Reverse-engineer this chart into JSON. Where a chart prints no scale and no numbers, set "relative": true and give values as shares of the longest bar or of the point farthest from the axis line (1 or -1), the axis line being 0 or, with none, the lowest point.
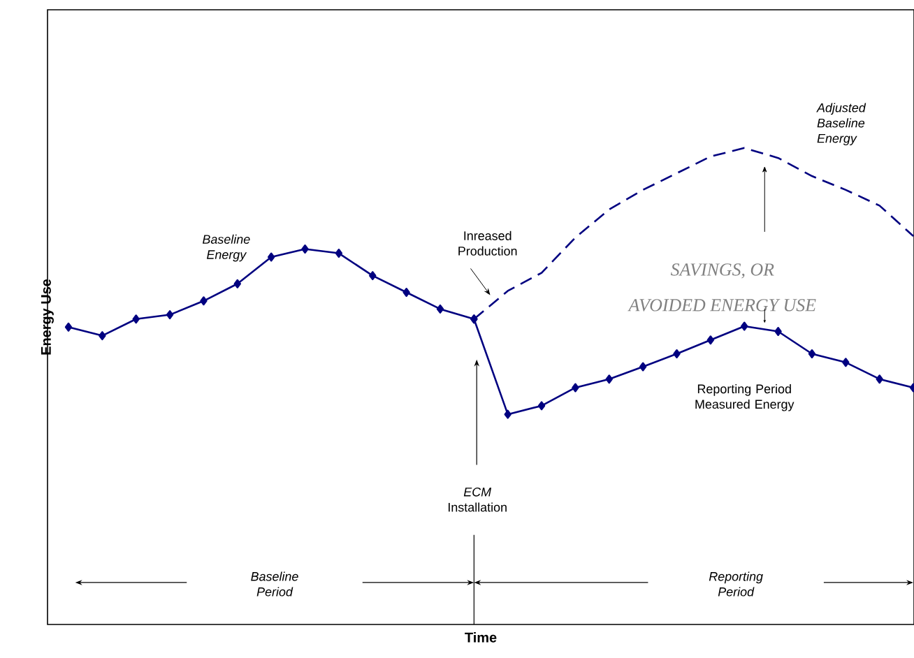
{
  "chart_data": {
    "type": "line",
    "relative": true,
    "xlabel": "Time",
    "ylabel": "Energy Use",
    "categories": [
      null,
      null,
      null,
      null,
      null,
      null,
      null,
      null,
      null,
      null,
      null,
      null,
      null,
      null,
      null,
      null,
      null,
      null,
      null,
      null,
      null,
      null,
      null,
      null,
      null,
      null
    ],
    "series": [
      {
        "name": "Baseline Energy",
        "color": "#000080",
        "marker": "diamond",
        "line_style": "solid",
        "values": [
          0.624,
          0.606,
          0.641,
          0.65,
          0.679,
          0.715,
          0.771,
          0.788,
          0.779,
          0.732,
          0.697,
          0.662,
          0.641,
          null,
          null,
          null,
          null,
          null,
          null,
          null,
          null,
          null,
          null,
          null,
          null,
          null
        ]
      },
      {
        "name": "Reporting Period Measured Energy",
        "color": "#000080",
        "marker": "diamond",
        "line_style": "solid",
        "values": [
          null,
          null,
          null,
          null,
          null,
          null,
          null,
          null,
          null,
          null,
          null,
          null,
          0.641,
          0.441,
          0.459,
          0.497,
          0.515,
          0.541,
          0.568,
          0.597,
          0.626,
          0.615,
          0.568,
          0.55,
          0.515,
          0.497
        ]
      },
      {
        "name": "Adjusted Baseline Energy",
        "color": "#000080",
        "marker": "none",
        "line_style": "dashed",
        "values": [
          null,
          null,
          null,
          null,
          null,
          null,
          null,
          null,
          null,
          null,
          null,
          null,
          0.641,
          0.7,
          0.738,
          0.812,
          0.871,
          0.912,
          0.947,
          0.982,
          1,
          0.979,
          0.941,
          0.912,
          0.879,
          0.815
        ]
      }
    ],
    "annotations": [
      "Inreased Production",
      "SAVINGS, OR",
      "AVOIDED ENERGY USE",
      "*ECM* Installation",
      "Baseline Period",
      "Reporting Period"
    ]
  }
}
